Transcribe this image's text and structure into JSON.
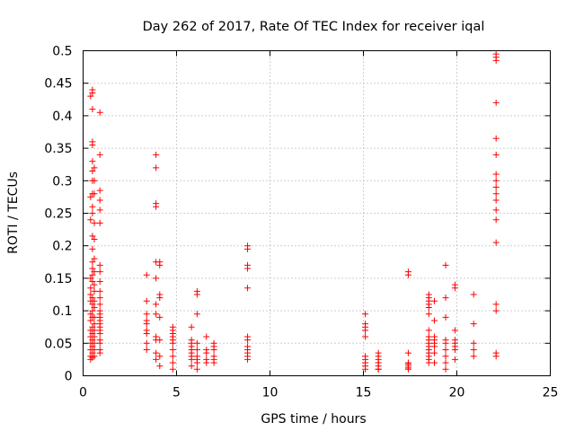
{
  "chart_data": {
    "type": "scatter",
    "title": "Day 262 of 2017, Rate Of TEC Index for receiver iqal",
    "xlabel": "GPS time / hours",
    "ylabel": "ROTI / TECUs",
    "xlim": [
      0,
      25
    ],
    "ylim": [
      0,
      0.5
    ],
    "x_ticks": [
      {
        "value": 0,
        "label": "0"
      },
      {
        "value": 5,
        "label": "5"
      },
      {
        "value": 10,
        "label": "10"
      },
      {
        "value": 15,
        "label": "15"
      },
      {
        "value": 20,
        "label": "20"
      },
      {
        "value": 25,
        "label": "25"
      }
    ],
    "y_ticks": [
      {
        "value": 0,
        "label": "0"
      },
      {
        "value": 0.05,
        "label": "0.05"
      },
      {
        "value": 0.1,
        "label": "0.1"
      },
      {
        "value": 0.15,
        "label": "0.15"
      },
      {
        "value": 0.2,
        "label": "0.2"
      },
      {
        "value": 0.25,
        "label": "0.25"
      },
      {
        "value": 0.3,
        "label": "0.3"
      },
      {
        "value": 0.35,
        "label": "0.35"
      },
      {
        "value": 0.4,
        "label": "0.4"
      },
      {
        "value": 0.45,
        "label": "0.45"
      },
      {
        "value": 0.5,
        "label": "0.5"
      }
    ],
    "grid": true,
    "legend": "none",
    "marker": "+",
    "marker_color": "#ff0000",
    "series": [
      {
        "name": "iqal",
        "x": [
          0.4,
          0.4,
          0.4,
          0.4,
          0.4,
          0.4,
          0.4,
          0.4,
          0.4,
          0.4,
          0.4,
          0.4,
          0.4,
          0.4,
          0.4,
          0.5,
          0.5,
          0.5,
          0.5,
          0.5,
          0.5,
          0.5,
          0.5,
          0.5,
          0.5,
          0.5,
          0.5,
          0.5,
          0.5,
          0.5,
          0.5,
          0.5,
          0.5,
          0.5,
          0.5,
          0.5,
          0.5,
          0.5,
          0.5,
          0.5,
          0.5,
          0.5,
          0.6,
          0.6,
          0.6,
          0.6,
          0.6,
          0.6,
          0.6,
          0.6,
          0.6,
          0.6,
          0.6,
          0.6,
          0.6,
          0.6,
          0.6,
          0.6,
          0.6,
          0.6,
          0.9,
          0.9,
          0.9,
          0.9,
          0.9,
          0.9,
          0.9,
          0.9,
          0.9,
          0.9,
          0.9,
          0.9,
          0.9,
          0.9,
          0.9,
          0.9,
          0.9,
          0.9,
          0.9,
          0.9,
          0.9,
          0.9,
          0.9,
          0.9,
          3.4,
          3.4,
          3.4,
          3.4,
          3.4,
          3.4,
          3.4,
          3.4,
          3.4,
          3.9,
          3.9,
          3.9,
          3.9,
          3.9,
          3.9,
          3.9,
          3.9,
          3.9,
          3.9,
          3.9,
          3.9,
          4.1,
          4.1,
          4.1,
          4.1,
          4.1,
          4.1,
          4.1,
          4.1,
          4.8,
          4.8,
          4.8,
          4.8,
          4.8,
          4.8,
          4.8,
          4.8,
          4.8,
          4.8,
          5.8,
          5.8,
          5.8,
          5.8,
          5.8,
          5.8,
          5.8,
          5.8,
          5.8,
          6.1,
          6.1,
          6.1,
          6.1,
          6.1,
          6.1,
          6.1,
          6.1,
          6.1,
          6.6,
          6.6,
          6.6,
          6.6,
          6.6,
          7.0,
          7.0,
          7.0,
          7.0,
          7.0,
          7.0,
          8.8,
          8.8,
          8.8,
          8.8,
          8.8,
          8.8,
          8.8,
          8.8,
          8.8,
          8.8,
          8.8,
          8.8,
          15.1,
          15.1,
          15.1,
          15.1,
          15.1,
          15.1,
          15.1,
          15.1,
          15.1,
          15.1,
          15.8,
          15.8,
          15.8,
          15.8,
          15.8,
          15.8,
          15.8,
          15.8,
          17.4,
          17.4,
          17.4,
          17.4,
          17.4,
          17.4,
          17.4,
          17.4,
          18.5,
          18.5,
          18.5,
          18.5,
          18.5,
          18.5,
          18.5,
          18.5,
          18.5,
          18.5,
          18.5,
          18.5,
          18.5,
          18.5,
          18.5,
          18.5,
          18.8,
          18.8,
          18.8,
          18.8,
          18.8,
          18.8,
          18.8,
          18.8,
          19.4,
          19.4,
          19.4,
          19.4,
          19.4,
          19.4,
          19.4,
          19.4,
          19.4,
          19.9,
          19.9,
          19.9,
          19.9,
          19.9,
          19.9,
          19.9,
          19.9,
          20.9,
          20.9,
          20.9,
          20.9,
          20.9,
          22.1,
          22.1,
          22.1,
          22.1,
          22.1,
          22.1,
          22.1,
          22.1,
          22.1,
          22.1,
          22.1,
          22.1,
          22.1,
          22.1,
          22.1,
          22.1,
          22.1,
          22.1
        ],
        "y": [
          0.025,
          0.03,
          0.04,
          0.05,
          0.06,
          0.07,
          0.085,
          0.095,
          0.115,
          0.125,
          0.135,
          0.15,
          0.24,
          0.275,
          0.43,
          0.028,
          0.035,
          0.045,
          0.055,
          0.065,
          0.075,
          0.09,
          0.1,
          0.11,
          0.12,
          0.145,
          0.155,
          0.165,
          0.175,
          0.195,
          0.215,
          0.25,
          0.26,
          0.28,
          0.3,
          0.315,
          0.33,
          0.355,
          0.36,
          0.41,
          0.435,
          0.44,
          0.03,
          0.04,
          0.05,
          0.06,
          0.07,
          0.08,
          0.09,
          0.105,
          0.115,
          0.13,
          0.14,
          0.16,
          0.18,
          0.21,
          0.235,
          0.28,
          0.3,
          0.32,
          0.035,
          0.04,
          0.05,
          0.055,
          0.065,
          0.07,
          0.075,
          0.08,
          0.085,
          0.09,
          0.095,
          0.1,
          0.11,
          0.12,
          0.13,
          0.145,
          0.16,
          0.17,
          0.235,
          0.255,
          0.27,
          0.285,
          0.34,
          0.405,
          0.04,
          0.05,
          0.065,
          0.07,
          0.08,
          0.085,
          0.095,
          0.115,
          0.155,
          0.025,
          0.035,
          0.055,
          0.06,
          0.095,
          0.11,
          0.15,
          0.175,
          0.26,
          0.265,
          0.32,
          0.34,
          0.015,
          0.03,
          0.055,
          0.09,
          0.12,
          0.125,
          0.17,
          0.175,
          0.01,
          0.02,
          0.03,
          0.04,
          0.05,
          0.055,
          0.06,
          0.065,
          0.07,
          0.075,
          0.015,
          0.025,
          0.03,
          0.035,
          0.04,
          0.045,
          0.05,
          0.055,
          0.075,
          0.01,
          0.02,
          0.025,
          0.03,
          0.04,
          0.05,
          0.095,
          0.125,
          0.13,
          0.02,
          0.025,
          0.035,
          0.04,
          0.06,
          0.02,
          0.025,
          0.03,
          0.04,
          0.045,
          0.05,
          0.025,
          0.03,
          0.035,
          0.04,
          0.045,
          0.055,
          0.06,
          0.135,
          0.165,
          0.17,
          0.195,
          0.2,
          0.01,
          0.015,
          0.02,
          0.025,
          0.03,
          0.06,
          0.07,
          0.075,
          0.08,
          0.095,
          0.01,
          0.015,
          0.02,
          0.025,
          0.03,
          0.035,
          0.02,
          0.01,
          0.01,
          0.012,
          0.015,
          0.018,
          0.02,
          0.035,
          0.155,
          0.16,
          0.02,
          0.025,
          0.03,
          0.035,
          0.04,
          0.045,
          0.05,
          0.055,
          0.06,
          0.07,
          0.095,
          0.105,
          0.11,
          0.115,
          0.12,
          0.125,
          0.02,
          0.035,
          0.045,
          0.05,
          0.055,
          0.06,
          0.085,
          0.115,
          0.01,
          0.02,
          0.03,
          0.04,
          0.05,
          0.055,
          0.09,
          0.12,
          0.17,
          0.025,
          0.04,
          0.045,
          0.05,
          0.055,
          0.07,
          0.135,
          0.14,
          0.03,
          0.04,
          0.05,
          0.08,
          0.125,
          0.03,
          0.035,
          0.1,
          0.11,
          0.205,
          0.24,
          0.255,
          0.27,
          0.28,
          0.29,
          0.3,
          0.31,
          0.34,
          0.365,
          0.42,
          0.485,
          0.49,
          0.495
        ]
      }
    ]
  }
}
